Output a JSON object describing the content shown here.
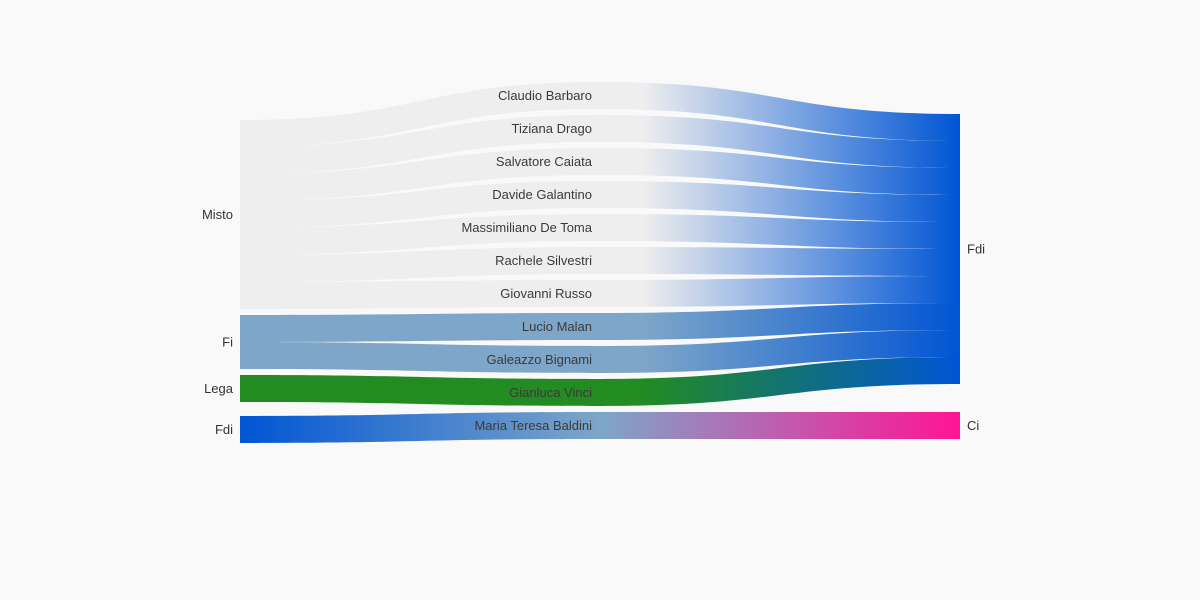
{
  "chart_data": {
    "type": "sankey",
    "title": "",
    "sources": [
      {
        "name": "Misto",
        "color": "#eeeeee"
      },
      {
        "name": "Fi",
        "color": "#7ea6c8"
      },
      {
        "name": "Lega",
        "color": "#228b22"
      },
      {
        "name": "Fdi",
        "color": "#0055d4"
      }
    ],
    "targets": [
      {
        "name": "Fdi",
        "color": "#0055d4"
      },
      {
        "name": "Ci",
        "color": "#ff1493"
      }
    ],
    "flows": [
      {
        "person": "Claudio Barbaro",
        "from": "Misto",
        "to": "Fdi",
        "value": 1
      },
      {
        "person": "Tiziana Drago",
        "from": "Misto",
        "to": "Fdi",
        "value": 1
      },
      {
        "person": "Salvatore Caiata",
        "from": "Misto",
        "to": "Fdi",
        "value": 1
      },
      {
        "person": "Davide Galantino",
        "from": "Misto",
        "to": "Fdi",
        "value": 1
      },
      {
        "person": "Massimiliano De Toma",
        "from": "Misto",
        "to": "Fdi",
        "value": 1
      },
      {
        "person": "Rachele Silvestri",
        "from": "Misto",
        "to": "Fdi",
        "value": 1
      },
      {
        "person": "Giovanni Russo",
        "from": "Misto",
        "to": "Fdi",
        "value": 1
      },
      {
        "person": "Lucio Malan",
        "from": "Fi",
        "to": "Fdi",
        "value": 1
      },
      {
        "person": "Galeazzo Bignami",
        "from": "Fi",
        "to": "Fdi",
        "value": 1
      },
      {
        "person": "Gianluca Vinci",
        "from": "Lega",
        "to": "Fdi",
        "value": 1
      },
      {
        "person": "Maria Teresa Baldini",
        "from": "Fdi",
        "to": "Ci",
        "value": 1
      }
    ]
  }
}
